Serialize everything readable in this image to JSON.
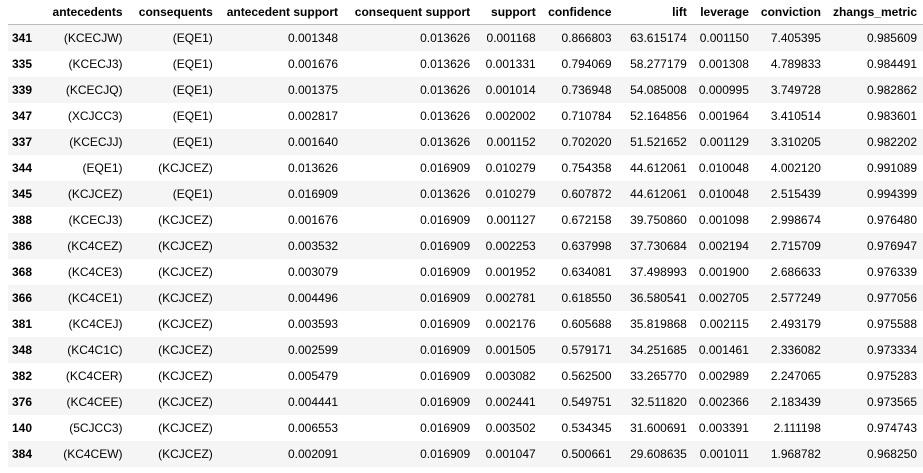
{
  "table": {
    "columns": [
      "",
      "antecedents",
      "consequents",
      "antecedent support",
      "consequent support",
      "support",
      "confidence",
      "lift",
      "leverage",
      "conviction",
      "zhangs_metric"
    ],
    "rows": [
      [
        "341",
        "(KCECJW)",
        "(EQE1)",
        "0.001348",
        "0.013626",
        "0.001168",
        "0.866803",
        "63.615174",
        "0.001150",
        "7.405395",
        "0.985609"
      ],
      [
        "335",
        "(KCECJ3)",
        "(EQE1)",
        "0.001676",
        "0.013626",
        "0.001331",
        "0.794069",
        "58.277179",
        "0.001308",
        "4.789833",
        "0.984491"
      ],
      [
        "339",
        "(KCECJQ)",
        "(EQE1)",
        "0.001375",
        "0.013626",
        "0.001014",
        "0.736948",
        "54.085008",
        "0.000995",
        "3.749728",
        "0.982862"
      ],
      [
        "347",
        "(XCJCC3)",
        "(EQE1)",
        "0.002817",
        "0.013626",
        "0.002002",
        "0.710784",
        "52.164856",
        "0.001964",
        "3.410514",
        "0.983601"
      ],
      [
        "337",
        "(KCECJJ)",
        "(EQE1)",
        "0.001640",
        "0.013626",
        "0.001152",
        "0.702020",
        "51.521652",
        "0.001129",
        "3.310205",
        "0.982202"
      ],
      [
        "344",
        "(EQE1)",
        "(KCJCEZ)",
        "0.013626",
        "0.016909",
        "0.010279",
        "0.754358",
        "44.612061",
        "0.010048",
        "4.002120",
        "0.991089"
      ],
      [
        "345",
        "(KCJCEZ)",
        "(EQE1)",
        "0.016909",
        "0.013626",
        "0.010279",
        "0.607872",
        "44.612061",
        "0.010048",
        "2.515439",
        "0.994399"
      ],
      [
        "388",
        "(KCECJ3)",
        "(KCJCEZ)",
        "0.001676",
        "0.016909",
        "0.001127",
        "0.672158",
        "39.750860",
        "0.001098",
        "2.998674",
        "0.976480"
      ],
      [
        "386",
        "(KC4CEZ)",
        "(KCJCEZ)",
        "0.003532",
        "0.016909",
        "0.002253",
        "0.637998",
        "37.730684",
        "0.002194",
        "2.715709",
        "0.976947"
      ],
      [
        "368",
        "(KC4CE3)",
        "(KCJCEZ)",
        "0.003079",
        "0.016909",
        "0.001952",
        "0.634081",
        "37.498993",
        "0.001900",
        "2.686633",
        "0.976339"
      ],
      [
        "366",
        "(KC4CE1)",
        "(KCJCEZ)",
        "0.004496",
        "0.016909",
        "0.002781",
        "0.618550",
        "36.580541",
        "0.002705",
        "2.577249",
        "0.977056"
      ],
      [
        "381",
        "(KC4CEJ)",
        "(KCJCEZ)",
        "0.003593",
        "0.016909",
        "0.002176",
        "0.605688",
        "35.819868",
        "0.002115",
        "2.493179",
        "0.975588"
      ],
      [
        "348",
        "(KC4C1C)",
        "(KCJCEZ)",
        "0.002599",
        "0.016909",
        "0.001505",
        "0.579171",
        "34.251685",
        "0.001461",
        "2.336082",
        "0.973334"
      ],
      [
        "382",
        "(KC4CER)",
        "(KCJCEZ)",
        "0.005479",
        "0.016909",
        "0.003082",
        "0.562500",
        "33.265770",
        "0.002989",
        "2.247065",
        "0.975283"
      ],
      [
        "376",
        "(KC4CEE)",
        "(KCJCEZ)",
        "0.004441",
        "0.016909",
        "0.002441",
        "0.549751",
        "32.511820",
        "0.002366",
        "2.183439",
        "0.973565"
      ],
      [
        "140",
        "(5CJCC3)",
        "(KCJCEZ)",
        "0.006553",
        "0.016909",
        "0.003502",
        "0.534345",
        "31.600691",
        "0.003391",
        "2.111198",
        "0.974743"
      ],
      [
        "384",
        "(KC4CEW)",
        "(KCJCEZ)",
        "0.002091",
        "0.016909",
        "0.001047",
        "0.500661",
        "29.608635",
        "0.001011",
        "1.968782",
        "0.968250"
      ]
    ]
  }
}
